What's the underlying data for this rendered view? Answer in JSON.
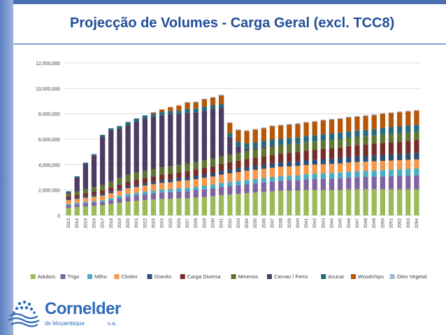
{
  "header": {
    "title": "Projecção de Volumes - Carga Geral (excl. TCC8)"
  },
  "logo": {
    "name": "Cornelder",
    "subtitle": "de Moçambique",
    "suffix": "s.a."
  },
  "chart_data": {
    "type": "bar",
    "stacked": true,
    "title": "Projecção de Volumes - Carga Geral (excl. TCC8)",
    "xlabel": "",
    "ylabel": "",
    "ylim": [
      0,
      12000000
    ],
    "yticks": [
      0,
      2000000,
      4000000,
      6000000,
      8000000,
      10000000,
      12000000
    ],
    "ytick_labels": [
      "0",
      "2,000,000",
      "4,000,000",
      "6,000,000",
      "8,000,000",
      "10,000,000",
      "12,000,000"
    ],
    "grid": true,
    "legend_position": "bottom",
    "categories": [
      "2013",
      "2014",
      "2015",
      "2016",
      "2017",
      "2018",
      "2019",
      "2020",
      "2021",
      "2022",
      "2023",
      "2024",
      "2025",
      "2026",
      "2027",
      "2028",
      "2029",
      "2030",
      "2031",
      "2032",
      "2033",
      "2034",
      "2035",
      "2036",
      "2037",
      "2038",
      "2039",
      "2040",
      "2041",
      "2042",
      "2043",
      "2044",
      "2045",
      "2046",
      "2047",
      "2048",
      "2049",
      "2050",
      "2051",
      "2052",
      "2053",
      "2054"
    ],
    "series": [
      {
        "name": "Adubos",
        "color": "#9bbb59",
        "values": [
          600000,
          650000,
          700000,
          750000,
          800000,
          900000,
          1000000,
          1100000,
          1150000,
          1200000,
          1250000,
          1300000,
          1300000,
          1350000,
          1350000,
          1400000,
          1450000,
          1500000,
          1600000,
          1650000,
          1700000,
          1750000,
          1800000,
          1850000,
          1900000,
          1950000,
          1950000,
          1950000,
          2000000,
          2000000,
          2000000,
          2000000,
          2000000,
          2050000,
          2050000,
          2050000,
          2050000,
          2050000,
          2050000,
          2050000,
          2050000,
          2050000
        ]
      },
      {
        "name": "Trigo",
        "color": "#8064a2",
        "values": [
          200000,
          220000,
          230000,
          240000,
          250000,
          300000,
          350000,
          400000,
          420000,
          450000,
          480000,
          500000,
          520000,
          540000,
          560000,
          580000,
          600000,
          620000,
          640000,
          660000,
          680000,
          700000,
          720000,
          740000,
          760000,
          780000,
          800000,
          820000,
          840000,
          860000,
          880000,
          900000,
          920000,
          940000,
          960000,
          980000,
          1000000,
          1020000,
          1040000,
          1060000,
          1080000,
          1100000
        ]
      },
      {
        "name": "Milho",
        "color": "#4bacc6",
        "values": [
          100000,
          110000,
          120000,
          130000,
          140000,
          160000,
          180000,
          200000,
          210000,
          220000,
          230000,
          240000,
          250000,
          260000,
          270000,
          280000,
          290000,
          300000,
          310000,
          320000,
          330000,
          340000,
          350000,
          360000,
          370000,
          380000,
          390000,
          400000,
          410000,
          420000,
          430000,
          440000,
          450000,
          460000,
          470000,
          480000,
          490000,
          500000,
          510000,
          520000,
          530000,
          540000
        ]
      },
      {
        "name": "Clinker",
        "color": "#f79646",
        "values": [
          300000,
          320000,
          340000,
          360000,
          380000,
          400000,
          420000,
          440000,
          460000,
          480000,
          500000,
          520000,
          540000,
          560000,
          580000,
          600000,
          620000,
          640000,
          660000,
          680000,
          700000,
          720000,
          720000,
          720000,
          720000,
          720000,
          720000,
          720000,
          720000,
          720000,
          720000,
          720000,
          720000,
          720000,
          720000,
          720000,
          720000,
          720000,
          720000,
          720000,
          720000,
          720000
        ]
      },
      {
        "name": "Granito",
        "color": "#2c4d75",
        "values": [
          100000,
          110000,
          120000,
          130000,
          140000,
          150000,
          160000,
          170000,
          180000,
          190000,
          200000,
          210000,
          220000,
          230000,
          240000,
          250000,
          260000,
          270000,
          280000,
          290000,
          300000,
          310000,
          320000,
          330000,
          340000,
          350000,
          360000,
          370000,
          380000,
          390000,
          400000,
          410000,
          420000,
          430000,
          440000,
          450000,
          460000,
          470000,
          480000,
          490000,
          500000,
          510000
        ]
      },
      {
        "name": "Carga Diversa",
        "color": "#772c2a",
        "values": [
          200000,
          220000,
          240000,
          260000,
          280000,
          300000,
          320000,
          340000,
          360000,
          380000,
          400000,
          420000,
          440000,
          460000,
          480000,
          500000,
          520000,
          540000,
          560000,
          580000,
          600000,
          620000,
          640000,
          660000,
          680000,
          700000,
          720000,
          740000,
          760000,
          780000,
          800000,
          820000,
          840000,
          860000,
          880000,
          900000,
          920000,
          940000,
          960000,
          980000,
          1000000,
          1020000
        ]
      },
      {
        "name": "Minerios",
        "color": "#5f7530",
        "values": [
          200000,
          250000,
          300000,
          350000,
          400000,
          450000,
          500000,
          550000,
          600000,
          600000,
          600000,
          600000,
          600000,
          600000,
          600000,
          600000,
          600000,
          600000,
          600000,
          600000,
          600000,
          650000,
          650000,
          650000,
          650000,
          650000,
          650000,
          650000,
          650000,
          650000,
          650000,
          650000,
          650000,
          650000,
          650000,
          650000,
          650000,
          650000,
          650000,
          650000,
          650000,
          650000
        ]
      },
      {
        "name": "Carvao / Ferro",
        "color": "#4d3b62",
        "values": [
          100000,
          1100000,
          2000000,
          2500000,
          3800000,
          4000000,
          3900000,
          3900000,
          4000000,
          4100000,
          4100000,
          4100000,
          4100000,
          4000000,
          4000000,
          3900000,
          3900000,
          3900000,
          3800000,
          1400000,
          500000,
          150000,
          100000,
          100000,
          100000,
          0,
          0,
          0,
          0,
          0,
          0,
          0,
          0,
          0,
          0,
          0,
          0,
          0,
          0,
          0,
          0,
          0
        ]
      },
      {
        "name": "Acucar",
        "color": "#276a7c",
        "values": [
          100000,
          100000,
          100000,
          100000,
          150000,
          200000,
          200000,
          250000,
          250000,
          250000,
          250000,
          250000,
          250000,
          250000,
          300000,
          300000,
          300000,
          300000,
          300000,
          300000,
          400000,
          450000,
          450000,
          450000,
          450000,
          500000,
          500000,
          500000,
          500000,
          500000,
          500000,
          500000,
          500000,
          500000,
          500000,
          500000,
          500000,
          550000,
          550000,
          550000,
          550000,
          550000
        ]
      },
      {
        "name": "Woodchips",
        "color": "#b65708",
        "values": [
          0,
          0,
          0,
          0,
          0,
          0,
          0,
          0,
          0,
          0,
          100000,
          200000,
          300000,
          400000,
          500000,
          500000,
          600000,
          600000,
          700000,
          800000,
          900000,
          950000,
          1000000,
          1000000,
          1050000,
          1050000,
          1050000,
          1050000,
          1050000,
          1050000,
          1100000,
          1100000,
          1100000,
          1100000,
          1100000,
          1100000,
          1100000,
          1100000,
          1100000,
          1100000,
          1100000,
          1100000
        ]
      },
      {
        "name": "Oleo Vegetal",
        "color": "#a5b6d4",
        "values": [
          0,
          0,
          0,
          0,
          0,
          0,
          0,
          0,
          0,
          0,
          0,
          0,
          0,
          0,
          50000,
          50000,
          50000,
          50000,
          50000,
          60000,
          60000,
          60000,
          60000,
          60000,
          60000,
          60000,
          60000,
          60000,
          60000,
          60000,
          60000,
          60000,
          60000,
          60000,
          60000,
          60000,
          60000,
          60000,
          60000,
          60000,
          60000,
          60000
        ]
      }
    ]
  }
}
